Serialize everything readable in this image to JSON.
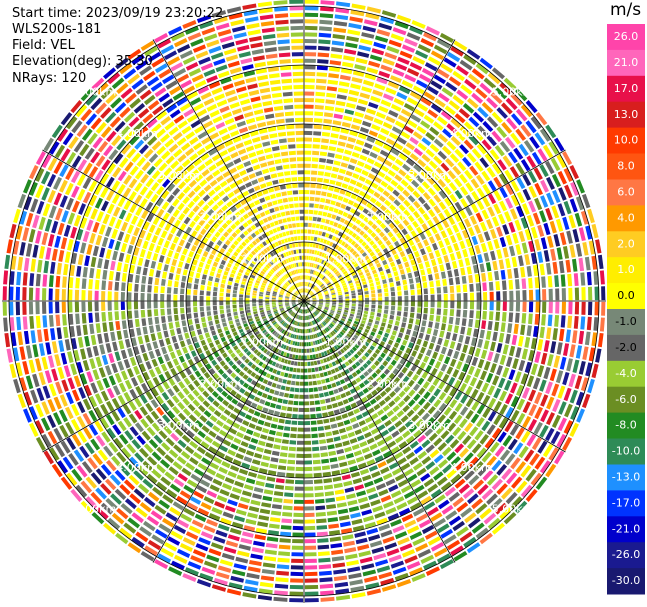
{
  "header": {
    "start_time": "Start time: 2023/09/19 23:20:22",
    "instrument": "WLS200s-181",
    "field": "Field: VEL",
    "elevation": "Elevation(deg): 35.30",
    "nrays": "NRays: 120"
  },
  "chart_data": {
    "type": "heatmap",
    "projection": "polar (PPI lidar scan)",
    "field": "VEL",
    "units": "m/s",
    "nrays": 120,
    "elevation_deg": 35.3,
    "range_rings_km": [
      1.0,
      2.0,
      3.0,
      4.0,
      5.0
    ],
    "range_ring_labels": [
      "1.00km",
      "2.00km",
      "3.00km",
      "4.00km",
      "5.00km"
    ],
    "azimuth_spokes_deg": [
      0,
      30,
      60,
      90,
      120,
      150,
      180,
      210,
      240,
      270,
      300,
      330
    ],
    "max_range_km": 5.0,
    "grid": true,
    "colorbar": {
      "unit": "m/s",
      "ticks": [
        "26.0",
        "21.0",
        "17.0",
        "13.0",
        "10.0",
        "8.0",
        "6.0",
        "4.0",
        "2.0",
        "1.0",
        "0.0",
        "-1.0",
        "-2.0",
        "-4.0",
        "-6.0",
        "-8.0",
        "-10.0",
        "-13.0",
        "-17.0",
        "-21.0",
        "-26.0",
        "-30.0"
      ],
      "colors": [
        "#ff44aa",
        "#ff66bb",
        "#e8104a",
        "#d81e1e",
        "#ff3a00",
        "#ff5511",
        "#ff7744",
        "#ff9900",
        "#ffcc22",
        "#ffee00",
        "#ffff00",
        "#778877",
        "#666666",
        "#99cc33",
        "#6b8e23",
        "#228b22",
        "#2e8b57",
        "#1e90ff",
        "#0033ff",
        "#0000cc",
        "#1a1a90",
        "#191970"
      ],
      "range": [
        -30.0,
        26.0
      ]
    },
    "pattern_summary": {
      "near_field_north": "positive (yellow, ~2 to 4 m/s)",
      "near_field_south": "negative (green, ~-2 to -6 m/s)",
      "east_west_axis": "near zero (grey)",
      "outer_rings": "noisy, full color range"
    }
  }
}
